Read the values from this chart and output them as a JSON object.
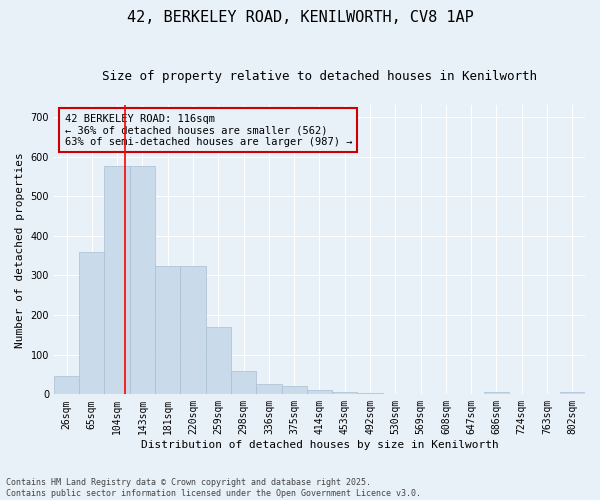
{
  "title": "42, BERKELEY ROAD, KENILWORTH, CV8 1AP",
  "subtitle": "Size of property relative to detached houses in Kenilworth",
  "xlabel": "Distribution of detached houses by size in Kenilworth",
  "ylabel": "Number of detached properties",
  "footnote1": "Contains HM Land Registry data © Crown copyright and database right 2025.",
  "footnote2": "Contains public sector information licensed under the Open Government Licence v3.0.",
  "annotation_line1": "42 BERKELEY ROAD: 116sqm",
  "annotation_line2": "← 36% of detached houses are smaller (562)",
  "annotation_line3": "63% of semi-detached houses are larger (987) →",
  "bar_labels": [
    "26sqm",
    "65sqm",
    "104sqm",
    "143sqm",
    "181sqm",
    "220sqm",
    "259sqm",
    "298sqm",
    "336sqm",
    "375sqm",
    "414sqm",
    "453sqm",
    "492sqm",
    "530sqm",
    "569sqm",
    "608sqm",
    "647sqm",
    "686sqm",
    "724sqm",
    "763sqm",
    "802sqm"
  ],
  "bar_values": [
    45,
    360,
    575,
    575,
    325,
    325,
    170,
    60,
    25,
    20,
    12,
    7,
    3,
    0,
    0,
    0,
    0,
    7,
    0,
    0,
    7
  ],
  "bar_color": "#c9daea",
  "bar_edge_color": "#a8c0d4",
  "red_line_x": 2.3,
  "ylim": [
    0,
    730
  ],
  "yticks": [
    0,
    100,
    200,
    300,
    400,
    500,
    600,
    700
  ],
  "bg_color": "#e8f0f8",
  "plot_bg_color": "#e8f0f8",
  "grid_color": "#ffffff",
  "title_fontsize": 11,
  "subtitle_fontsize": 9,
  "ylabel_fontsize": 8,
  "xlabel_fontsize": 8,
  "tick_fontsize": 7,
  "annotation_box_color": "#cc0000",
  "annotation_fontsize": 7.5,
  "footnote_fontsize": 6
}
